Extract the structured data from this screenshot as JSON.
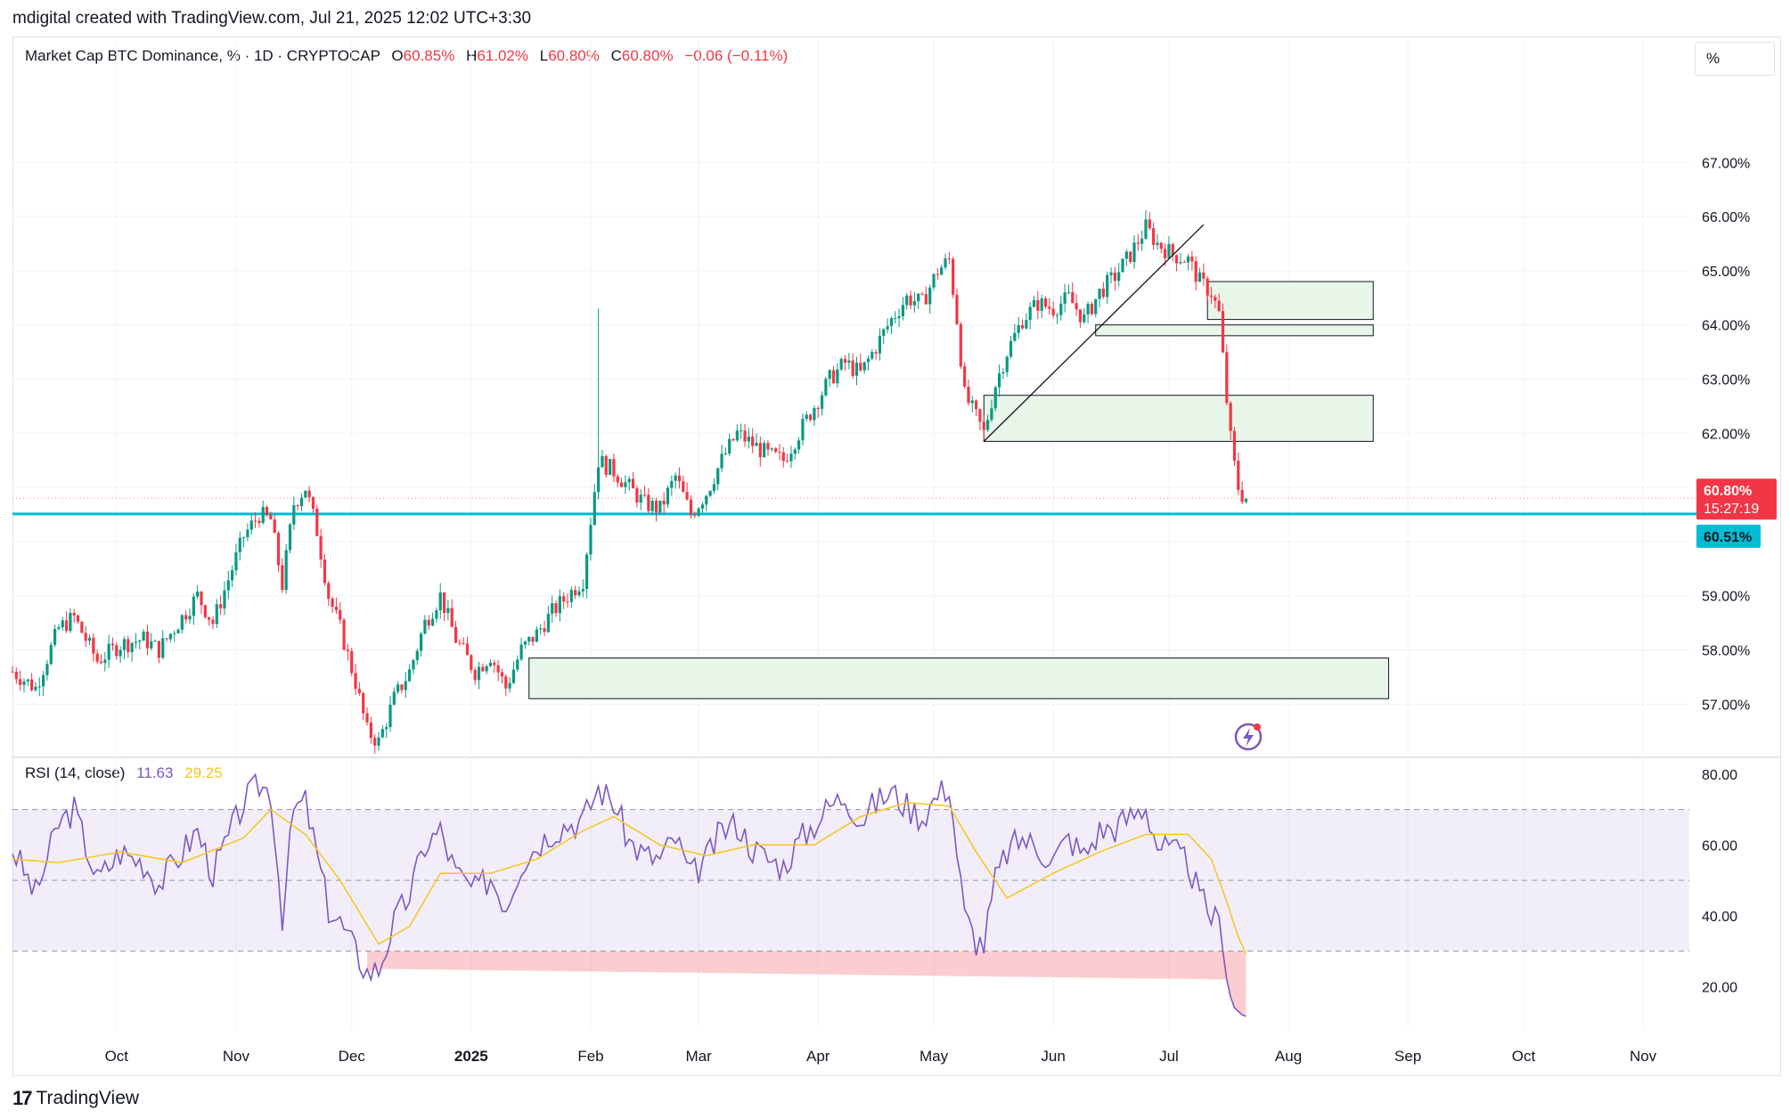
{
  "header": {
    "text": "mdigital created with TradingView.com, Jul 21, 2025 12:02 UTC+3:30"
  },
  "legend": {
    "symbol": "Market Cap BTC Dominance, % · 1D · CRYPTOCAP",
    "o_label": "O",
    "o_value": "60.85%",
    "h_label": "H",
    "h_value": "61.02%",
    "l_label": "L",
    "l_value": "60.80%",
    "c_label": "C",
    "c_value": "60.80%",
    "change": "−0.06 (−0.11%)"
  },
  "scale_button": "%",
  "rsi_legend": {
    "name": "RSI (14, close)",
    "rsi_value": "11.63",
    "ma_value": "29.25"
  },
  "price_labels": {
    "current": "60.80%",
    "countdown": "15:27:19",
    "line": "60.51%"
  },
  "colors": {
    "up": "#089981",
    "down": "#f23645",
    "hline": "#00bcd4",
    "rsi": "#7e57c2",
    "rsi_ma": "#f7c51e",
    "zone_fill": "#e8f5e9"
  },
  "footer": {
    "brand": "TradingView",
    "mark": "17"
  },
  "chart_data": [
    {
      "type": "candlestick",
      "title": "Market Cap BTC Dominance, % · 1D · CRYPTOCAP",
      "y_unit": "%",
      "ylim": [
        56.1,
        68.6
      ],
      "y_ticks": [
        "57.00%",
        "58.00%",
        "59.00%",
        "60.00%",
        "61.00%",
        "62.00%",
        "63.00%",
        "64.00%",
        "65.00%",
        "66.00%",
        "67.00%"
      ],
      "x_ticks": [
        "Oct",
        "Nov",
        "Dec",
        "2025",
        "Feb",
        "Mar",
        "Apr",
        "May",
        "Jun",
        "Jul",
        "Aug",
        "Sep",
        "Oct",
        "Nov"
      ],
      "x_range": [
        "2024-09-04",
        "2025-11-13"
      ],
      "horizontal_line": 60.51,
      "last_close": 60.8,
      "zones": [
        {
          "from": "2025-07-11",
          "to": "2025-08-23",
          "low": 64.1,
          "high": 64.8
        },
        {
          "from": "2025-06-12",
          "to": "2025-08-23",
          "low": 63.8,
          "high": 64.0
        },
        {
          "from": "2025-05-14",
          "to": "2025-08-23",
          "low": 61.85,
          "high": 62.7
        },
        {
          "from": "2025-01-16",
          "to": "2025-08-27",
          "low": 57.1,
          "high": 57.85
        }
      ],
      "trendline": {
        "from": [
          "2025-05-14",
          61.85
        ],
        "to": [
          "2025-07-10",
          65.85
        ]
      },
      "closes": [
        [
          "2024-09-04",
          57.6
        ],
        [
          "2024-09-10",
          57.3
        ],
        [
          "2024-09-16",
          58.4
        ],
        [
          "2024-09-20",
          58.6
        ],
        [
          "2024-09-26",
          57.8
        ],
        [
          "2024-10-02",
          58.1
        ],
        [
          "2024-10-08",
          58.2
        ],
        [
          "2024-10-12",
          58.0
        ],
        [
          "2024-10-18",
          58.6
        ],
        [
          "2024-10-22",
          59.0
        ],
        [
          "2024-10-26",
          58.5
        ],
        [
          "2024-10-30",
          59.3
        ],
        [
          "2024-11-03",
          60.1
        ],
        [
          "2024-11-07",
          60.5
        ],
        [
          "2024-11-10",
          60.4
        ],
        [
          "2024-11-13",
          59.2
        ],
        [
          "2024-11-16",
          60.7
        ],
        [
          "2024-11-19",
          61.0
        ],
        [
          "2024-11-22",
          60.2
        ],
        [
          "2024-11-25",
          59.0
        ],
        [
          "2024-11-28",
          58.4
        ],
        [
          "2024-12-02",
          57.4
        ],
        [
          "2024-12-05",
          56.5
        ],
        [
          "2024-12-08",
          56.3
        ],
        [
          "2024-12-12",
          57.1
        ],
        [
          "2024-12-16",
          57.6
        ],
        [
          "2024-12-20",
          58.5
        ],
        [
          "2024-12-24",
          59.0
        ],
        [
          "2024-12-28",
          58.2
        ],
        [
          "2025-01-02",
          57.6
        ],
        [
          "2025-01-06",
          57.9
        ],
        [
          "2025-01-10",
          57.3
        ],
        [
          "2025-01-14",
          58.0
        ],
        [
          "2025-01-18",
          58.3
        ],
        [
          "2025-01-22",
          58.7
        ],
        [
          "2025-01-26",
          59.0
        ],
        [
          "2025-01-30",
          59.3
        ],
        [
          "2025-02-03",
          61.5
        ],
        [
          "2025-02-07",
          61.3
        ],
        [
          "2025-02-11",
          61.0
        ],
        [
          "2025-02-15",
          60.7
        ],
        [
          "2025-02-19",
          60.6
        ],
        [
          "2025-02-23",
          61.2
        ],
        [
          "2025-02-27",
          60.5
        ],
        [
          "2025-03-03",
          60.9
        ],
        [
          "2025-03-07",
          61.5
        ],
        [
          "2025-03-11",
          62.0
        ],
        [
          "2025-03-15",
          61.8
        ],
        [
          "2025-03-19",
          61.6
        ],
        [
          "2025-03-23",
          61.5
        ],
        [
          "2025-03-27",
          62.0
        ],
        [
          "2025-03-31",
          62.5
        ],
        [
          "2025-04-04",
          63.0
        ],
        [
          "2025-04-08",
          63.3
        ],
        [
          "2025-04-12",
          63.1
        ],
        [
          "2025-04-16",
          63.6
        ],
        [
          "2025-04-20",
          64.1
        ],
        [
          "2025-04-24",
          64.5
        ],
        [
          "2025-04-28",
          64.4
        ],
        [
          "2025-05-02",
          65.0
        ],
        [
          "2025-05-05",
          65.2
        ],
        [
          "2025-05-07",
          64.1
        ],
        [
          "2025-05-09",
          62.7
        ],
        [
          "2025-05-12",
          62.3
        ],
        [
          "2025-05-14",
          62.0
        ],
        [
          "2025-05-17",
          62.9
        ],
        [
          "2025-05-20",
          63.5
        ],
        [
          "2025-05-24",
          64.1
        ],
        [
          "2025-05-28",
          64.4
        ],
        [
          "2025-06-01",
          64.3
        ],
        [
          "2025-06-05",
          64.5
        ],
        [
          "2025-06-09",
          64.1
        ],
        [
          "2025-06-13",
          64.6
        ],
        [
          "2025-06-17",
          64.9
        ],
        [
          "2025-06-21",
          65.3
        ],
        [
          "2025-06-25",
          65.8
        ],
        [
          "2025-06-28",
          65.5
        ],
        [
          "2025-07-02",
          65.3
        ],
        [
          "2025-07-06",
          65.2
        ],
        [
          "2025-07-09",
          64.8
        ],
        [
          "2025-07-12",
          64.6
        ],
        [
          "2025-07-14",
          64.2
        ],
        [
          "2025-07-15",
          63.4
        ],
        [
          "2025-07-16",
          62.6
        ],
        [
          "2025-07-17",
          61.9
        ],
        [
          "2025-07-18",
          61.4
        ],
        [
          "2025-07-19",
          61.0
        ],
        [
          "2025-07-20",
          60.86
        ],
        [
          "2025-07-21",
          60.8
        ]
      ]
    },
    {
      "type": "line",
      "title": "RSI (14, close)",
      "ylim": [
        8,
        83
      ],
      "y_ticks": [
        "20.00",
        "40.00",
        "60.00",
        "80.00"
      ],
      "bands": {
        "upper": 70,
        "middle": 50,
        "lower": 30
      },
      "series": [
        {
          "name": "RSI",
          "values": [
            [
              "2024-09-04",
              59
            ],
            [
              "2024-09-10",
              46
            ],
            [
              "2024-09-16",
              66
            ],
            [
              "2024-09-20",
              70
            ],
            [
              "2024-09-26",
              50
            ],
            [
              "2024-10-02",
              58
            ],
            [
              "2024-10-08",
              55
            ],
            [
              "2024-10-12",
              49
            ],
            [
              "2024-10-18",
              58
            ],
            [
              "2024-10-22",
              64
            ],
            [
              "2024-10-26",
              52
            ],
            [
              "2024-10-30",
              62
            ],
            [
              "2024-11-03",
              72
            ],
            [
              "2024-11-07",
              77
            ],
            [
              "2024-11-10",
              75
            ],
            [
              "2024-11-13",
              40
            ],
            [
              "2024-11-16",
              70
            ],
            [
              "2024-11-19",
              72
            ],
            [
              "2024-11-22",
              57
            ],
            [
              "2024-11-25",
              42
            ],
            [
              "2024-11-28",
              38
            ],
            [
              "2024-12-02",
              30
            ],
            [
              "2024-12-05",
              24
            ],
            [
              "2024-12-08",
              25
            ],
            [
              "2024-12-12",
              38
            ],
            [
              "2024-12-16",
              46
            ],
            [
              "2024-12-20",
              60
            ],
            [
              "2024-12-24",
              64
            ],
            [
              "2024-12-28",
              52
            ],
            [
              "2025-01-02",
              47
            ],
            [
              "2025-01-06",
              51
            ],
            [
              "2025-01-10",
              43
            ],
            [
              "2025-01-14",
              55
            ],
            [
              "2025-01-18",
              60
            ],
            [
              "2025-01-22",
              64
            ],
            [
              "2025-01-26",
              66
            ],
            [
              "2025-01-30",
              67
            ],
            [
              "2025-02-03",
              76
            ],
            [
              "2025-02-07",
              72
            ],
            [
              "2025-02-11",
              61
            ],
            [
              "2025-02-15",
              57
            ],
            [
              "2025-02-19",
              56
            ],
            [
              "2025-02-23",
              62
            ],
            [
              "2025-02-27",
              51
            ],
            [
              "2025-03-03",
              56
            ],
            [
              "2025-03-07",
              64
            ],
            [
              "2025-03-11",
              66
            ],
            [
              "2025-03-15",
              59
            ],
            [
              "2025-03-19",
              56
            ],
            [
              "2025-03-23",
              54
            ],
            [
              "2025-03-27",
              61
            ],
            [
              "2025-03-31",
              66
            ],
            [
              "2025-04-04",
              71
            ],
            [
              "2025-04-08",
              74
            ],
            [
              "2025-04-12",
              67
            ],
            [
              "2025-04-16",
              72
            ],
            [
              "2025-04-20",
              75
            ],
            [
              "2025-04-24",
              71
            ],
            [
              "2025-04-28",
              68
            ],
            [
              "2025-05-02",
              74
            ],
            [
              "2025-05-05",
              77
            ],
            [
              "2025-05-07",
              58
            ],
            [
              "2025-05-09",
              40
            ],
            [
              "2025-05-12",
              33
            ],
            [
              "2025-05-14",
              32
            ],
            [
              "2025-05-17",
              50
            ],
            [
              "2025-05-20",
              58
            ],
            [
              "2025-05-24",
              62
            ],
            [
              "2025-05-28",
              59
            ],
            [
              "2025-06-01",
              56
            ],
            [
              "2025-06-05",
              62
            ],
            [
              "2025-06-09",
              57
            ],
            [
              "2025-06-13",
              64
            ],
            [
              "2025-06-17",
              65
            ],
            [
              "2025-06-21",
              68
            ],
            [
              "2025-06-25",
              71
            ],
            [
              "2025-06-28",
              60
            ],
            [
              "2025-07-02",
              58
            ],
            [
              "2025-07-06",
              55
            ],
            [
              "2025-07-09",
              45
            ],
            [
              "2025-07-12",
              40
            ],
            [
              "2025-07-14",
              38
            ],
            [
              "2025-07-15",
              30
            ],
            [
              "2025-07-16",
              22
            ],
            [
              "2025-07-17",
              17
            ],
            [
              "2025-07-18",
              14
            ],
            [
              "2025-07-19",
              13
            ],
            [
              "2025-07-20",
              12
            ],
            [
              "2025-07-21",
              11.63
            ]
          ]
        },
        {
          "name": "RSI-based MA",
          "values": [
            [
              "2024-09-04",
              56
            ],
            [
              "2024-09-16",
              55
            ],
            [
              "2024-10-02",
              58
            ],
            [
              "2024-10-18",
              55
            ],
            [
              "2024-11-03",
              62
            ],
            [
              "2024-11-10",
              70
            ],
            [
              "2024-11-19",
              63
            ],
            [
              "2024-11-28",
              50
            ],
            [
              "2024-12-08",
              32
            ],
            [
              "2024-12-16",
              37
            ],
            [
              "2024-12-24",
              52
            ],
            [
              "2025-01-06",
              52
            ],
            [
              "2025-01-18",
              56
            ],
            [
              "2025-01-30",
              64
            ],
            [
              "2025-02-07",
              68
            ],
            [
              "2025-02-19",
              60
            ],
            [
              "2025-03-03",
              57
            ],
            [
              "2025-03-15",
              60
            ],
            [
              "2025-03-31",
              60
            ],
            [
              "2025-04-12",
              68
            ],
            [
              "2025-04-24",
              72
            ],
            [
              "2025-05-05",
              71
            ],
            [
              "2025-05-12",
              58
            ],
            [
              "2025-05-20",
              45
            ],
            [
              "2025-06-01",
              52
            ],
            [
              "2025-06-13",
              58
            ],
            [
              "2025-06-25",
              63
            ],
            [
              "2025-07-06",
              63
            ],
            [
              "2025-07-12",
              56
            ],
            [
              "2025-07-16",
              44
            ],
            [
              "2025-07-19",
              34
            ],
            [
              "2025-07-21",
              29.25
            ]
          ]
        }
      ]
    }
  ]
}
